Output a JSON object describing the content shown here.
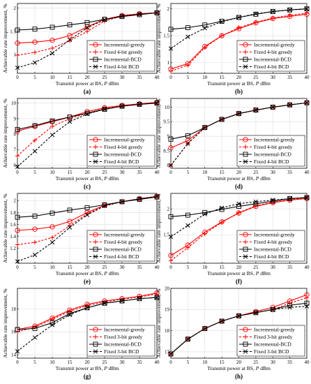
{
  "figure": {
    "xlabel_prefix": "Transmit power at BS, ",
    "xlabel_var": "P",
    "xlabel_unit": " dBm",
    "ylabel": "Achievable rate improvement, %"
  },
  "colors": {
    "greedy": "#ff0000",
    "bcd": "#000000"
  },
  "chart_data": [
    {
      "type": "line",
      "panel": "(a)",
      "x": [
        0,
        5,
        10,
        15,
        20,
        25,
        30,
        35,
        40
      ],
      "ylim": [
        0.6,
        2.1
      ],
      "yticks": [
        "1",
        "1.5",
        "2"
      ],
      "yticks_v": [
        1,
        1.5,
        2
      ],
      "legend": "bottom-right",
      "series": [
        {
          "name": "Incremental-greedy",
          "style": "greedy-inc",
          "values": [
            1.25,
            1.27,
            1.31,
            1.41,
            1.6,
            1.76,
            1.84,
            1.88,
            1.9
          ]
        },
        {
          "name": "Fixed 4-bit greedy",
          "style": "greedy-fix",
          "values": [
            0.99,
            1.05,
            1.14,
            1.3,
            1.5,
            1.72,
            1.83,
            1.88,
            1.9
          ]
        },
        {
          "name": "Incremental-BCD",
          "style": "bcd-inc",
          "values": [
            1.53,
            1.55,
            1.59,
            1.64,
            1.69,
            1.76,
            1.82,
            1.86,
            1.9
          ]
        },
        {
          "name": "Fixed 4-bit BCD",
          "style": "bcd-fix",
          "values": [
            0.72,
            0.83,
            1.03,
            1.32,
            1.58,
            1.75,
            1.83,
            1.87,
            1.9
          ]
        }
      ]
    },
    {
      "type": "line",
      "panel": "(b)",
      "x": [
        0,
        5,
        10,
        15,
        20,
        25,
        30,
        35,
        40
      ],
      "ylim": [
        0.8,
        2.1
      ],
      "yticks": [
        "1",
        "1.5",
        "2"
      ],
      "yticks_v": [
        1,
        1.5,
        2
      ],
      "legend": "bottom-right",
      "series": [
        {
          "name": "Incremental-greedy",
          "style": "greedy-inc",
          "values": [
            0.88,
            0.98,
            1.3,
            1.5,
            1.63,
            1.74,
            1.82,
            1.86,
            1.9
          ]
        },
        {
          "name": "Fixed 4-bit greedy",
          "style": "greedy-fix",
          "values": [
            0.84,
            0.95,
            1.28,
            1.5,
            1.65,
            1.75,
            1.83,
            1.88,
            1.92
          ]
        },
        {
          "name": "Incremental-BCD",
          "style": "bcd-inc",
          "values": [
            1.62,
            1.65,
            1.7,
            1.77,
            1.84,
            1.9,
            1.95,
            1.98,
            2.0
          ]
        },
        {
          "name": "Fixed 4-bit BCD",
          "style": "bcd-fix",
          "values": [
            1.26,
            1.48,
            1.64,
            1.76,
            1.84,
            1.91,
            1.95,
            1.98,
            2.0
          ]
        }
      ]
    },
    {
      "type": "line",
      "panel": "(c)",
      "x": [
        0,
        5,
        10,
        15,
        20,
        25,
        30,
        35,
        40
      ],
      "ylim": [
        5.8,
        10.3
      ],
      "yticks": [
        "6",
        "7",
        "8",
        "9",
        "10"
      ],
      "yticks_v": [
        6,
        7,
        8,
        9,
        10
      ],
      "legend": "bottom-right",
      "series": [
        {
          "name": "Incremental-greedy",
          "style": "greedy-inc",
          "values": [
            8.2,
            8.5,
            8.8,
            9.1,
            9.45,
            9.7,
            9.85,
            9.95,
            10.05
          ]
        },
        {
          "name": "Fixed 4-bit greedy",
          "style": "greedy-fix",
          "values": [
            6.6,
            7.6,
            8.5,
            9.0,
            9.35,
            9.65,
            9.85,
            9.95,
            10.05
          ]
        },
        {
          "name": "Incremental-BCD",
          "style": "bcd-inc",
          "values": [
            8.3,
            8.55,
            8.85,
            9.1,
            9.35,
            9.6,
            9.8,
            9.92,
            10.0
          ]
        },
        {
          "name": "Fixed 4-bit BCD",
          "style": "bcd-fix",
          "values": [
            5.9,
            6.9,
            7.95,
            8.8,
            9.3,
            9.6,
            9.8,
            9.92,
            10.0
          ]
        }
      ]
    },
    {
      "type": "line",
      "panel": "(d)",
      "x": [
        0,
        5,
        10,
        15,
        20,
        25,
        30,
        35,
        40
      ],
      "ylim": [
        7.9,
        10.3
      ],
      "yticks": [
        "8",
        "8.5",
        "9",
        "9.5",
        "10"
      ],
      "yticks_v": [
        8,
        8.5,
        9,
        9.5,
        10
      ],
      "legend": "bottom-right",
      "series": [
        {
          "name": "Incremental-greedy",
          "style": "greedy-inc",
          "values": [
            8.6,
            8.85,
            9.3,
            9.58,
            9.78,
            9.9,
            10.0,
            10.08,
            10.15
          ]
        },
        {
          "name": "Fixed 4-bit greedy",
          "style": "greedy-fix",
          "values": [
            8.0,
            8.75,
            9.3,
            9.58,
            9.78,
            9.9,
            10.0,
            10.08,
            10.15
          ]
        },
        {
          "name": "Incremental-BCD",
          "style": "bcd-inc",
          "values": [
            8.9,
            9.02,
            9.3,
            9.58,
            9.78,
            9.9,
            10.0,
            10.08,
            10.15
          ]
        },
        {
          "name": "Fixed 4-bit BCD",
          "style": "bcd-fix",
          "values": [
            8.0,
            8.75,
            9.3,
            9.58,
            9.78,
            9.9,
            10.0,
            10.08,
            10.15
          ]
        }
      ]
    },
    {
      "type": "line",
      "panel": "(e)",
      "x": [
        0,
        5,
        10,
        15,
        20,
        25,
        30,
        35,
        40
      ],
      "ylim": [
        0.95,
        2.12
      ],
      "yticks": [
        "1.2",
        "1.4",
        "1.6",
        "1.8",
        "2"
      ],
      "yticks_v": [
        1.2,
        1.4,
        1.6,
        1.8,
        2
      ],
      "legend": "bottom-right",
      "series": [
        {
          "name": "Incremental-greedy",
          "style": "greedy-inc",
          "values": [
            1.5,
            1.52,
            1.56,
            1.65,
            1.8,
            1.92,
            1.98,
            2.03,
            2.07
          ]
        },
        {
          "name": "Fixed 4-bit greedy",
          "style": "greedy-fix",
          "values": [
            1.26,
            1.3,
            1.38,
            1.58,
            1.78,
            1.91,
            1.98,
            2.03,
            2.07
          ]
        },
        {
          "name": "Incremental-BCD",
          "style": "bcd-inc",
          "values": [
            1.72,
            1.74,
            1.79,
            1.84,
            1.88,
            1.93,
            1.98,
            2.02,
            2.06
          ]
        },
        {
          "name": "Fixed 4-bit BCD",
          "style": "bcd-fix",
          "values": [
            0.98,
            1.09,
            1.3,
            1.55,
            1.76,
            1.91,
            1.98,
            2.03,
            2.07
          ]
        }
      ]
    },
    {
      "type": "line",
      "panel": "(f)",
      "x": [
        0,
        5,
        10,
        15,
        20,
        25,
        30,
        35,
        40
      ],
      "ylim": [
        0.95,
        2.3
      ],
      "yticks": [
        "1.5",
        "2"
      ],
      "yticks_v": [
        1.5,
        2
      ],
      "legend": "bottom-right",
      "series": [
        {
          "name": "Incremental-greedy",
          "style": "greedy-inc",
          "values": [
            1.1,
            1.3,
            1.55,
            1.75,
            1.92,
            2.05,
            2.12,
            2.17,
            2.2
          ]
        },
        {
          "name": "Fixed 4-bit greedy",
          "style": "greedy-fix",
          "values": [
            1.0,
            1.25,
            1.52,
            1.74,
            1.93,
            2.06,
            2.13,
            2.18,
            2.22
          ]
        },
        {
          "name": "Incremental-BCD",
          "style": "bcd-inc",
          "values": [
            1.85,
            1.88,
            1.93,
            1.99,
            2.05,
            2.1,
            2.15,
            2.2,
            2.22
          ]
        },
        {
          "name": "Fixed 4-bit BCD",
          "style": "bcd-fix",
          "values": [
            1.46,
            1.68,
            1.9,
            2.02,
            2.1,
            2.14,
            2.17,
            2.2,
            2.22
          ]
        }
      ]
    },
    {
      "type": "line",
      "panel": "(g)",
      "x": [
        0,
        5,
        10,
        15,
        20,
        25,
        30,
        35,
        40
      ],
      "ylim": [
        13.7,
        19.8
      ],
      "yticks": [
        "14",
        "16",
        "18"
      ],
      "yticks_v": [
        14,
        16,
        18
      ],
      "legend": "bottom-right",
      "series": [
        {
          "name": "Incremental-greedy",
          "style": "greedy-inc",
          "values": [
            16.2,
            16.5,
            17.2,
            17.9,
            18.4,
            18.7,
            18.9,
            19.1,
            19.4
          ]
        },
        {
          "name": "Fixed 3-bit greedy",
          "style": "greedy-fix",
          "values": [
            16.0,
            16.4,
            17.1,
            17.8,
            18.3,
            18.6,
            18.85,
            19.05,
            19.3
          ]
        },
        {
          "name": "Incremental-BCD",
          "style": "bcd-inc",
          "values": [
            16.2,
            16.3,
            16.8,
            17.6,
            18.1,
            18.5,
            18.7,
            18.9,
            19.0
          ]
        },
        {
          "name": "Fixed 3-bit BCD",
          "style": "bcd-fix",
          "values": [
            14.3,
            15.5,
            16.6,
            17.5,
            18.1,
            18.5,
            18.7,
            18.9,
            19.0
          ]
        }
      ]
    },
    {
      "type": "line",
      "panel": "(h)",
      "x": [
        0,
        5,
        10,
        15,
        20,
        25,
        30,
        35,
        40
      ],
      "ylim": [
        16.7,
        20.0
      ],
      "yticks": [
        "17",
        "18",
        "19",
        "20"
      ],
      "yticks_v": [
        17,
        18,
        19,
        20
      ],
      "legend": "bottom-right",
      "series": [
        {
          "name": "Incremental-greedy",
          "style": "greedy-inc",
          "values": [
            16.9,
            17.6,
            18.1,
            18.45,
            18.7,
            18.9,
            19.1,
            19.4,
            19.7
          ]
        },
        {
          "name": "Fixed 3-bit greedy",
          "style": "greedy-fix",
          "values": [
            16.9,
            17.6,
            18.1,
            18.45,
            18.7,
            18.85,
            19.0,
            19.3,
            19.55
          ]
        },
        {
          "name": "Incremental-BCD",
          "style": "bcd-inc",
          "values": [
            16.9,
            17.6,
            18.1,
            18.45,
            18.7,
            18.85,
            19.0,
            19.2,
            19.3
          ]
        },
        {
          "name": "Fixed 3-bit BCD",
          "style": "bcd-fix",
          "values": [
            16.9,
            17.6,
            18.1,
            18.45,
            18.7,
            18.85,
            19.0,
            19.1,
            19.15
          ]
        }
      ]
    }
  ]
}
